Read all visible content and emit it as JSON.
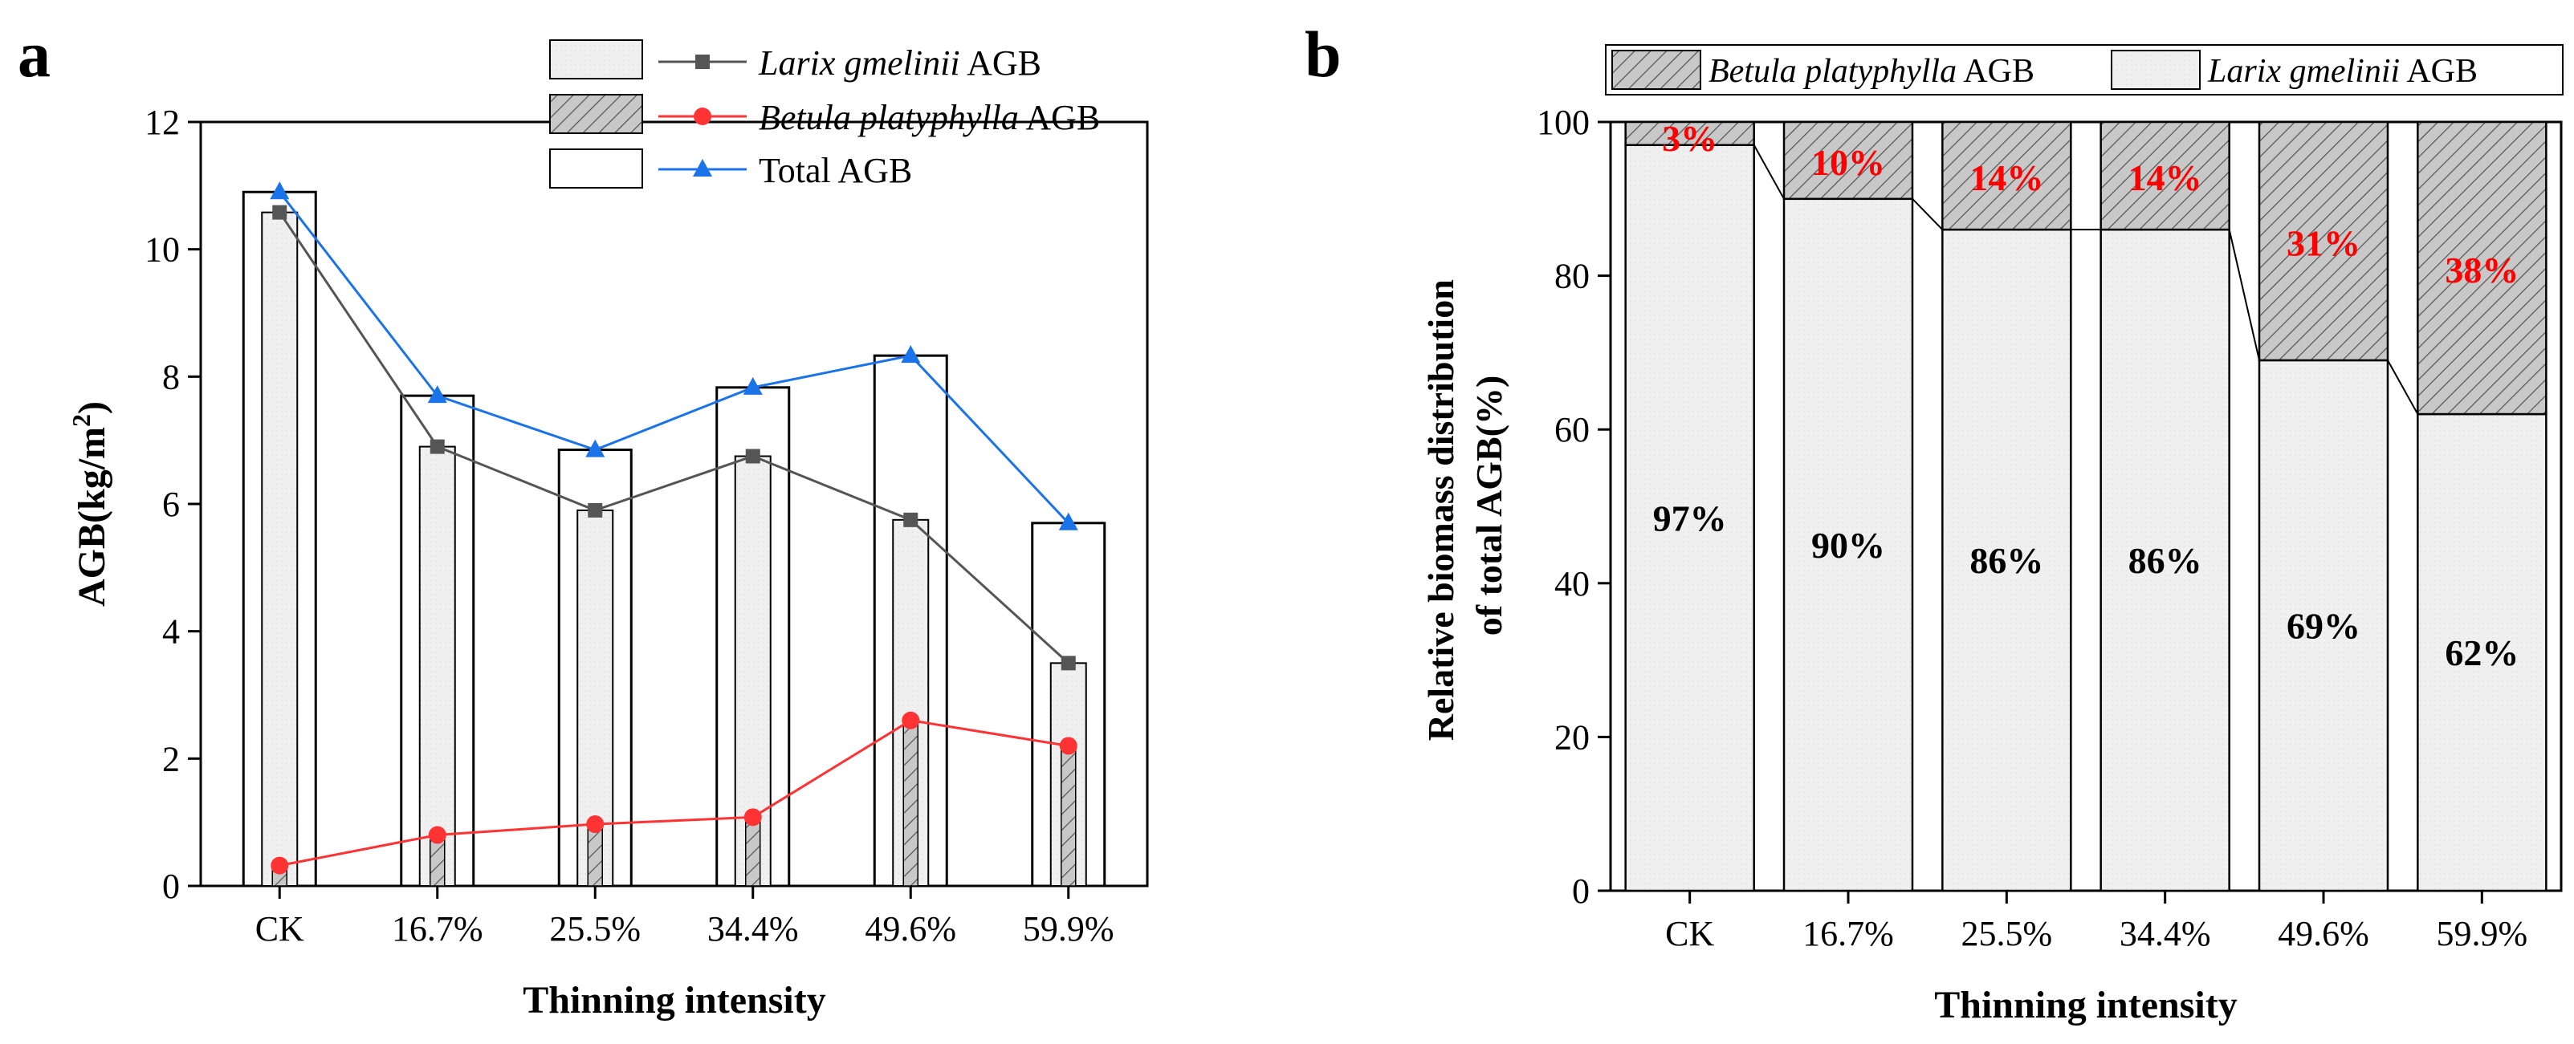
{
  "chart_data": [
    {
      "panel": "a",
      "type": "bar+line",
      "title": "",
      "xlabel": "Thinning intensity",
      "ylabel_main": "AGB(kg/m",
      "ylabel_sup": "2",
      "ylabel_end": ")",
      "categories": [
        "CK",
        "16.7%",
        "25.5%",
        "34.4%",
        "49.6%",
        "59.9%"
      ],
      "ylim": [
        0,
        12
      ],
      "yticks": [
        "0",
        "2",
        "4",
        "6",
        "8",
        "10",
        "12"
      ],
      "series": [
        {
          "name": "Larix gmelinii AGB",
          "name_italic": "Larix gmelinii",
          "name_rest": " AGB",
          "color": "#555555",
          "marker": "square",
          "values": [
            10.58,
            6.9,
            5.9,
            6.75,
            5.75,
            3.5
          ]
        },
        {
          "name": "Betula platyphylla AGB",
          "name_italic": "Betula platyphylla",
          "name_rest": " AGB",
          "color": "#ff3333",
          "marker": "circle",
          "values": [
            0.32,
            0.8,
            0.97,
            1.08,
            2.6,
            2.2
          ]
        },
        {
          "name": "Total AGB",
          "name_italic": "",
          "name_rest": "Total AGB",
          "color": "#1a73e8",
          "marker": "triangle",
          "values": [
            10.9,
            7.7,
            6.85,
            7.83,
            8.33,
            5.7
          ]
        }
      ],
      "legend_position": "top-right"
    },
    {
      "panel": "b",
      "type": "stacked-bar",
      "title": "",
      "xlabel": "Thinning intensity",
      "ylabel_line1": "Relative biomass distribution",
      "ylabel_line2": "of total AGB(%)",
      "categories": [
        "CK",
        "16.7%",
        "25.5%",
        "34.4%",
        "49.6%",
        "59.9%"
      ],
      "ylim": [
        0,
        100
      ],
      "yticks": [
        "0",
        "20",
        "40",
        "60",
        "80",
        "100"
      ],
      "series": [
        {
          "name": "Larix gmelinii AGB",
          "name_italic": "Larix gmelinii",
          "name_rest": " AGB",
          "values": [
            97,
            90,
            86,
            86,
            69,
            62
          ],
          "labels": [
            "97%",
            "90%",
            "86%",
            "86%",
            "69%",
            "62%"
          ],
          "label_color": "#000000"
        },
        {
          "name": "Betula platyphylla AGB",
          "name_italic": "Betula platyphylla",
          "name_rest": " AGB",
          "values": [
            3,
            10,
            14,
            14,
            31,
            38
          ],
          "labels": [
            "3%",
            "10%",
            "14%",
            "14%",
            "31%",
            "38%"
          ],
          "label_color": "#ff0000"
        }
      ],
      "legend_position": "top"
    }
  ]
}
